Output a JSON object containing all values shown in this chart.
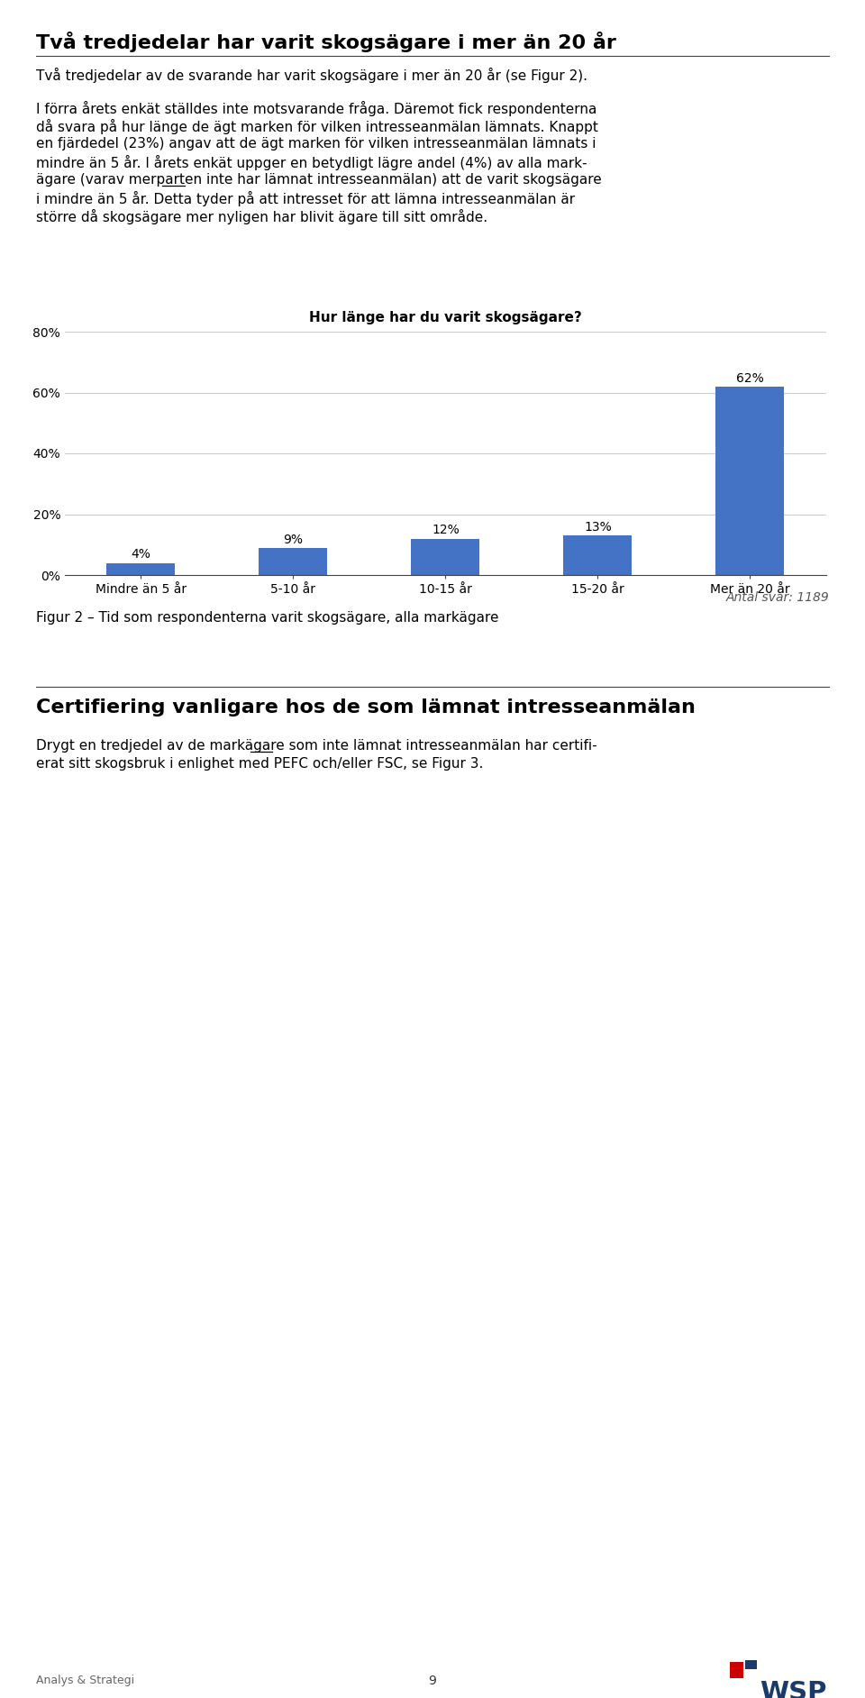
{
  "page_title": "Två tredjedelar har varit skogsägare i mer än 20 år",
  "page_title_fontsize": 16,
  "para1": "Två tredjedelar av de svarande har varit skogsägare i mer än 20 år (se Figur 2).",
  "para2_lines": [
    "I förra årets enkät ställdes inte motsvarande fråga. Däremot fick respondenterna",
    "då svara på hur länge de ägt marken för vilken intresseanmälan lämnats. Knappt",
    "en fjärdedel (23%) angav att de ägt marken för vilken intresseanmälan lämnats i",
    "mindre än 5 år. I årets enkät uppger en betydligt lägre andel (4%) av alla mark-",
    "ägare (varav merparten inte har lämnat intresseanmälan) att de varit skogsägare",
    "i mindre än 5 år. Detta tyder på att intresset för att lämna intresseanmälan är",
    "större då skogsägare mer nyligen har blivit ägare till sitt område."
  ],
  "para2_inte_line_idx": 4,
  "para2_inte_prefix": "ägare (varav merparten ",
  "chart_title": "Hur länge har du varit skogsägare?",
  "categories": [
    "Mindre än 5 år",
    "5-10 år",
    "10-15 år",
    "15-20 år",
    "Mer än 20 år"
  ],
  "values": [
    4,
    9,
    12,
    13,
    62
  ],
  "bar_color": "#4472C4",
  "ylim": [
    0,
    80
  ],
  "yticks": [
    0,
    20,
    40,
    60,
    80
  ],
  "ytick_labels": [
    "0%",
    "20%",
    "40%",
    "60%",
    "80%"
  ],
  "antal_svar_text": "Antal svar: 1189",
  "figure_caption": "Figur 2 – Tid som respondenterna varit skogsägare, alla markägare",
  "section2_title": "Certifiering vanligare hos de som lämnat intresseanmälan",
  "section2_title_fontsize": 16,
  "sec2_para_lines": [
    "Drygt en tredjedel av de markägare som inte lämnat intresseanmälan har certifi-",
    "erat sitt skogsbruk i enlighet med PEFC och/eller FSC, se Figur 3."
  ],
  "sec2_inte_prefix": "Drygt en tredjedel av de markägare som ",
  "footer_left": "Analys & Strategi",
  "footer_center": "9",
  "background_color": "#ffffff",
  "text_color": "#000000",
  "grid_color": "#cccccc",
  "body_fontsize": 11,
  "chart_title_fontsize": 11,
  "tick_fontsize": 10,
  "label_fontsize": 10,
  "caption_fontsize": 10,
  "footer_fontsize": 9
}
